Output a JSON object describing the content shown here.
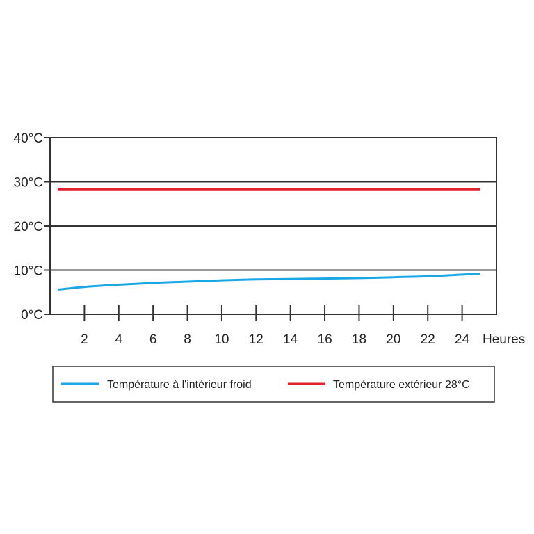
{
  "chart_data": {
    "type": "line",
    "title": "",
    "xlabel": "Heures",
    "ylabel": "",
    "xlim": [
      0,
      26
    ],
    "ylim": [
      0,
      40
    ],
    "grid": "horizontal",
    "legend_placement": "bottom",
    "x_ticks": [
      2,
      4,
      6,
      8,
      10,
      12,
      14,
      16,
      18,
      20,
      22,
      24
    ],
    "x_tick_labels": [
      "2",
      "4",
      "6",
      "8",
      "10",
      "12",
      "14",
      "16",
      "18",
      "20",
      "22",
      "24"
    ],
    "y_ticks": [
      0,
      10,
      20,
      30,
      40
    ],
    "y_tick_labels": [
      "0°C",
      "10°C",
      "20°C",
      "30°C",
      "40°C"
    ],
    "series": [
      {
        "name": "Température à l'intérieur froid",
        "color": "#1aa7e6",
        "x": [
          0.5,
          2,
          4,
          6,
          8,
          10,
          12,
          14,
          16,
          18,
          20,
          22,
          24,
          25
        ],
        "y": [
          5.6,
          6.2,
          6.7,
          7.1,
          7.4,
          7.7,
          7.9,
          8.0,
          8.1,
          8.2,
          8.4,
          8.6,
          9.0,
          9.2
        ]
      },
      {
        "name": "Température extérieur 28°C",
        "color": "#e3202a",
        "x": [
          0.5,
          25
        ],
        "y": [
          28.3,
          28.3
        ]
      }
    ]
  }
}
